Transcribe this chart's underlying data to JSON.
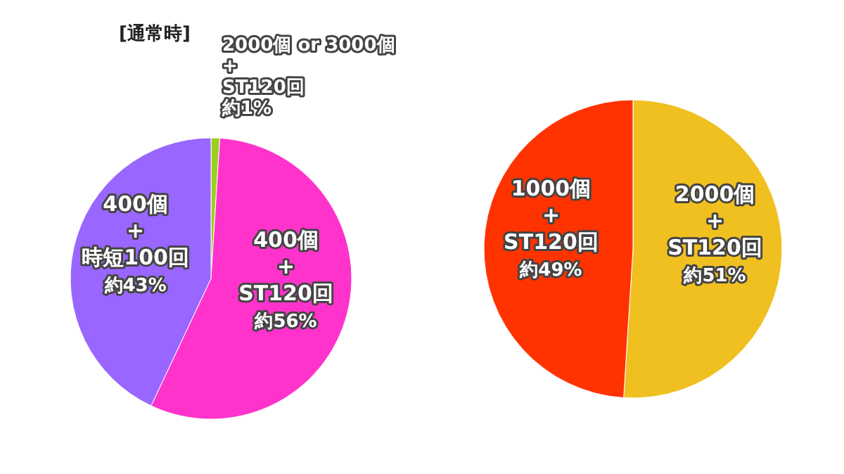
{
  "chart_data": [
    {
      "type": "pie",
      "title": "[通常時]",
      "categories": [
        "2000個 or 3000個 + ST120回",
        "400個 + ST120回",
        "400個 + 時短100回"
      ],
      "values": [
        1,
        56,
        43
      ],
      "colors": [
        "#9ccf1e",
        "#ff33cc",
        "#9966ff"
      ],
      "value_labels": [
        "約1%",
        "約56%",
        "約43%"
      ]
    },
    {
      "type": "pie",
      "categories": [
        "2000個 + ST120回",
        "1000個 + ST120回"
      ],
      "values": [
        51,
        49
      ],
      "colors": [
        "#f0c020",
        "#ff3300"
      ],
      "value_labels": [
        "約51%",
        "約49%"
      ]
    }
  ]
}
